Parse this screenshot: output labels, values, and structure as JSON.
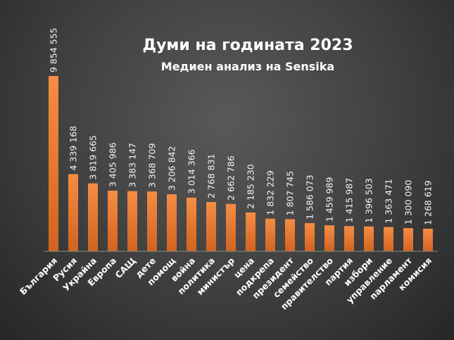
{
  "chart_data": {
    "type": "bar",
    "title": "Думи на годината 2023",
    "subtitle": "Медиен анализ на Sensika",
    "categories": [
      "България",
      "Русия",
      "Украйна",
      "Европа",
      "САЩ",
      "дете",
      "помощ",
      "война",
      "политика",
      "министър",
      "цена",
      "подкрепа",
      "президент",
      "семейство",
      "правителство",
      "партия",
      "избори",
      "управление",
      "парламент",
      "комисия"
    ],
    "values": [
      9854555,
      4339168,
      3819665,
      3405986,
      3383147,
      3368709,
      3206842,
      3014366,
      2768831,
      2662786,
      2185230,
      1832229,
      1807745,
      1586073,
      1459989,
      1415987,
      1396503,
      1363471,
      1300090,
      1268619
    ],
    "value_labels": [
      "9 854 555",
      "4 339 168",
      "3 819 665",
      "3 405 986",
      "3 383 147",
      "3 368 709",
      "3 206 842",
      "3 014 366",
      "2 768 831",
      "2 662 786",
      "2 185 230",
      "1 832 229",
      "1 807 745",
      "1 586 073",
      "1 459 989",
      "1 415 987",
      "1 396 503",
      "1 363 471",
      "1 300 090",
      "1 268 619"
    ],
    "ylim": [
      0,
      10000000
    ],
    "grid": false,
    "legend": "none",
    "colors": {
      "bar_top": "#f58d45",
      "bar_bottom": "#d1641f",
      "axis": "#8a8a8a"
    }
  }
}
